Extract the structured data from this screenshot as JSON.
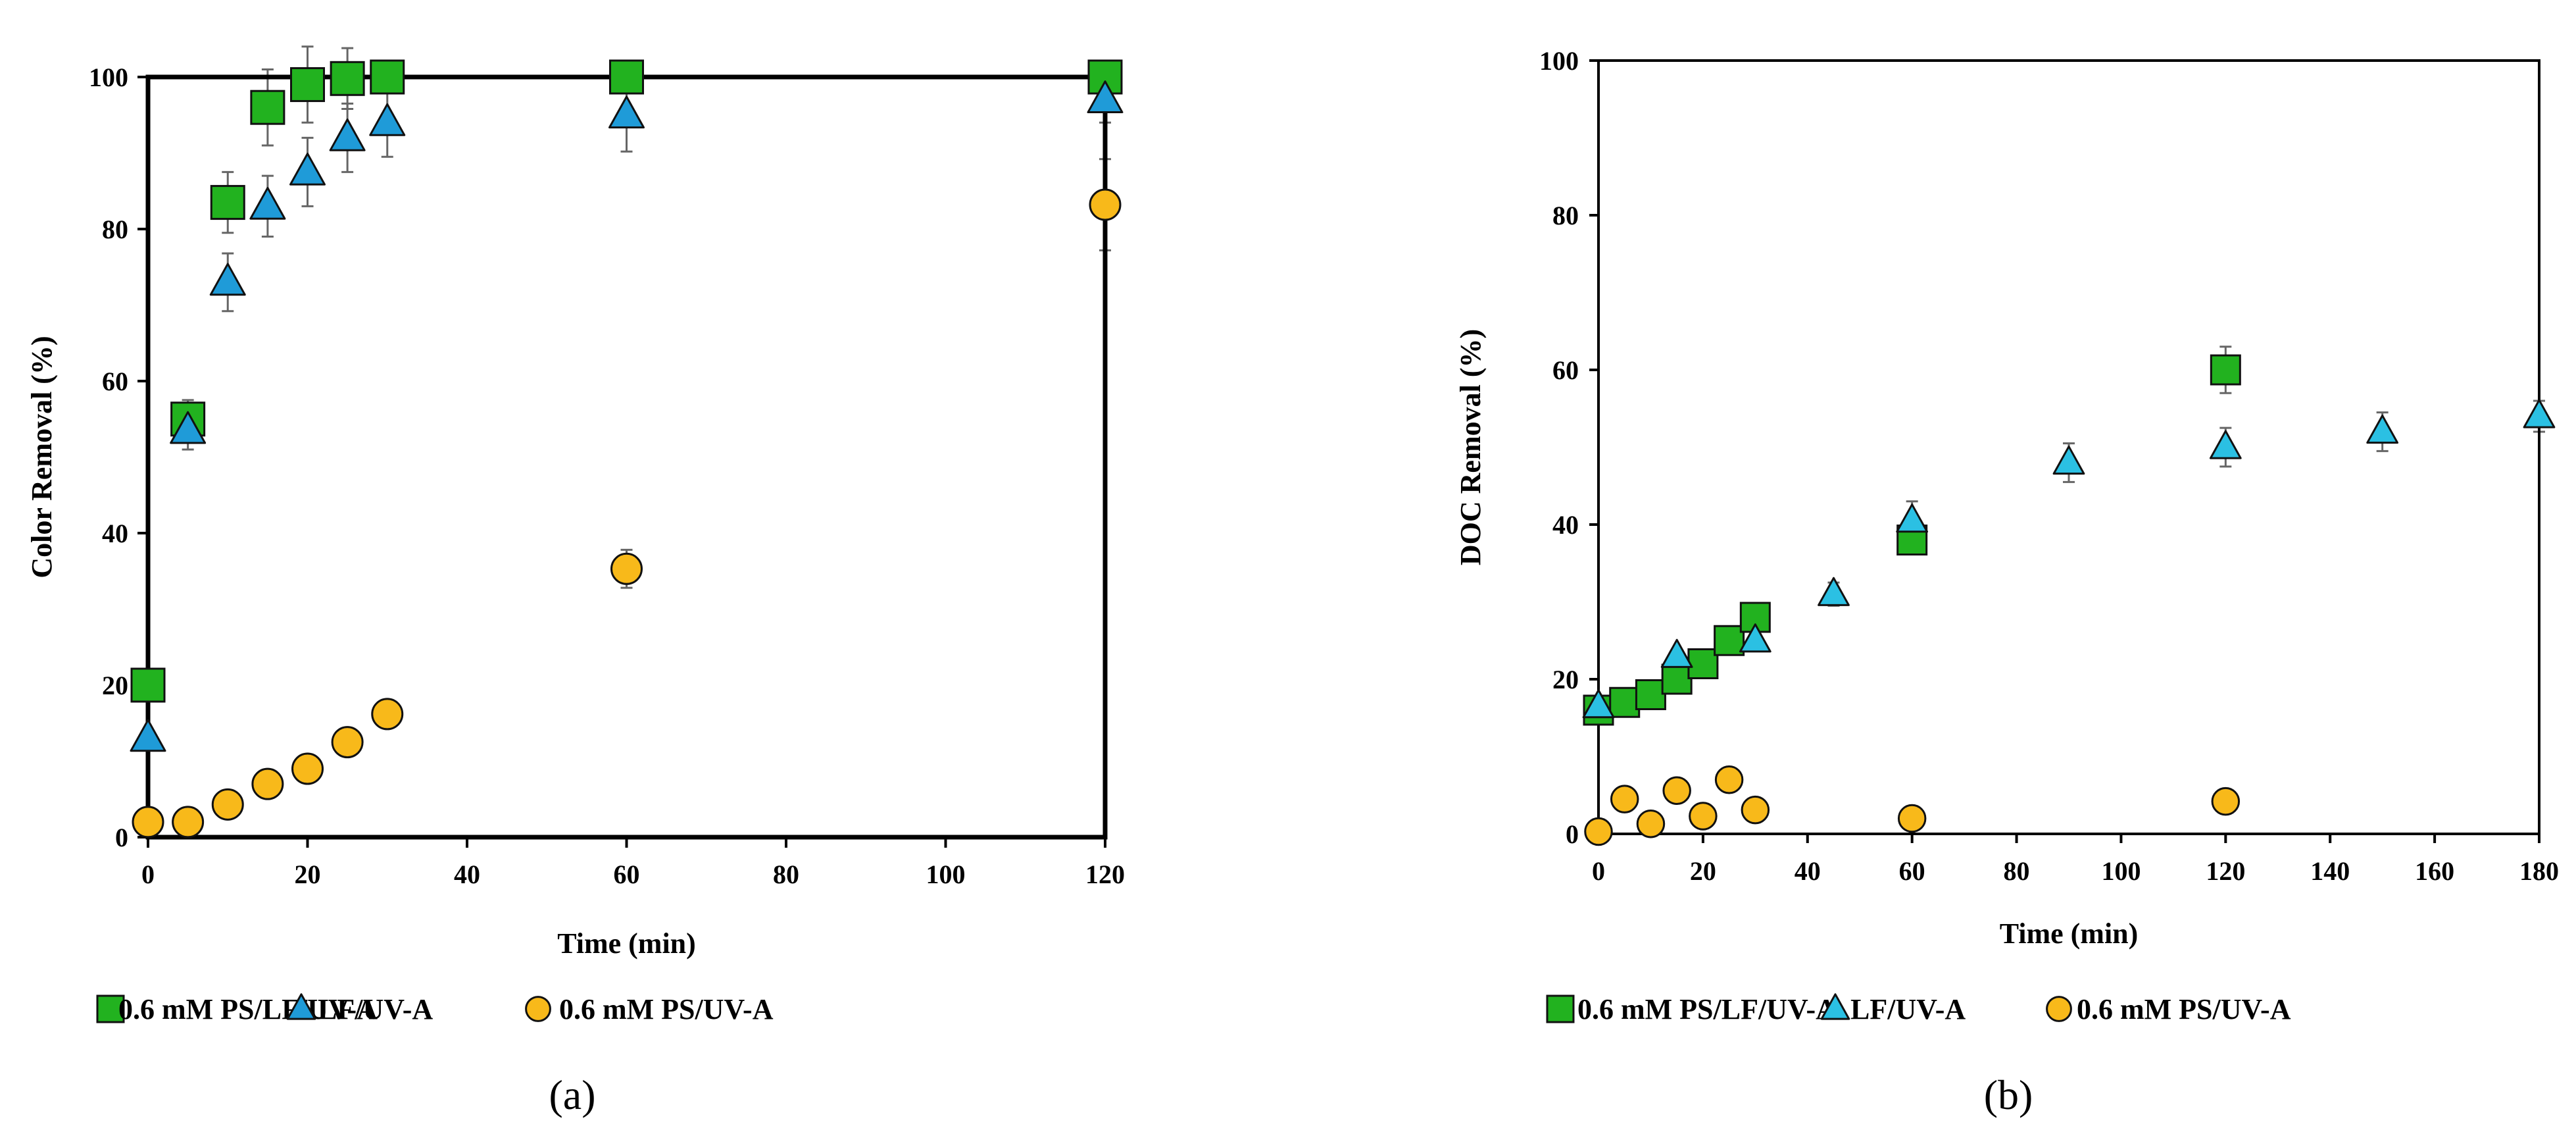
{
  "colors": {
    "square": "#22b21f",
    "triangle_a": "#1f9bd8",
    "triangle_b": "#2bc0e3",
    "circle": "#f8b91a",
    "errorbar": "#666666"
  },
  "chart_data": [
    {
      "type": "scatter",
      "panel_label": "(a)",
      "title": "",
      "xlabel": "Time (min)",
      "ylabel": "Color Removal (%)",
      "xlim": [
        0,
        120
      ],
      "ylim": [
        0,
        100
      ],
      "xticks": [
        0,
        20,
        40,
        60,
        80,
        100,
        120
      ],
      "yticks": [
        0,
        20,
        40,
        60,
        80,
        100
      ],
      "xtick_labels": [
        "0",
        "20",
        "40",
        "60",
        "80",
        "100",
        "120"
      ],
      "ytick_labels": [
        "0",
        "20",
        "40",
        "60",
        "80",
        "100"
      ],
      "legend_position": "bottom",
      "series": [
        {
          "name": "0.6 mM PS/LF/UV-A",
          "marker": "square",
          "x": [
            0,
            5,
            10,
            15,
            20,
            25,
            30,
            60,
            120
          ],
          "y": [
            20,
            55,
            83.5,
            96,
            99,
            99.8,
            100,
            100,
            100
          ],
          "err": [
            0,
            2.5,
            4,
            5,
            5,
            4,
            0,
            0,
            0
          ]
        },
        {
          "name": "LF/UV-A",
          "marker": "triangle",
          "x": [
            0,
            5,
            10,
            15,
            20,
            25,
            30,
            60,
            120
          ],
          "y": [
            13,
            53.5,
            73,
            83,
            87.5,
            92,
            94,
            95,
            97
          ],
          "err": [
            0,
            2.5,
            3.8,
            4,
            4.5,
            4.5,
            4.5,
            4.8,
            3
          ]
        },
        {
          "name": "0.6 mM PS/UV-A",
          "marker": "circle",
          "x": [
            0,
            5,
            10,
            15,
            20,
            25,
            30,
            60,
            120
          ],
          "y": [
            2,
            2,
            4.3,
            7,
            9,
            12.5,
            16.2,
            35.3,
            83.2
          ],
          "err": [
            0,
            0,
            0,
            0,
            0,
            0,
            0,
            2.5,
            6
          ]
        }
      ]
    },
    {
      "type": "scatter",
      "panel_label": "(b)",
      "title": "",
      "xlabel": "Time (min)",
      "ylabel": "DOC Removal (%)",
      "xlim": [
        0,
        180
      ],
      "ylim": [
        0,
        100
      ],
      "xticks": [
        0,
        20,
        40,
        60,
        80,
        100,
        120,
        140,
        160,
        180
      ],
      "yticks": [
        0,
        20,
        40,
        60,
        80,
        100
      ],
      "xtick_labels": [
        "0",
        "20",
        "40",
        "60",
        "80",
        "100",
        "120",
        "140",
        "160",
        "180"
      ],
      "ytick_labels": [
        "0",
        "20",
        "40",
        "60",
        "80",
        "100"
      ],
      "legend_position": "bottom",
      "series": [
        {
          "name": "0.6 mM PS/LF/UV-A",
          "marker": "square",
          "x": [
            0,
            5,
            10,
            15,
            20,
            25,
            30,
            60,
            120
          ],
          "y": [
            16,
            17,
            18,
            20,
            22,
            25,
            28,
            38,
            60
          ],
          "err": [
            0,
            0,
            0,
            0,
            0,
            0,
            0,
            1.5,
            3
          ]
        },
        {
          "name": "LF/UV-A",
          "marker": "triangle",
          "x": [
            0,
            15,
            30,
            45,
            60,
            90,
            120,
            150,
            180
          ],
          "y": [
            16.5,
            23,
            25,
            31,
            40.5,
            48,
            50,
            52,
            54
          ],
          "err": [
            0,
            0,
            0,
            1.5,
            2.5,
            2.5,
            2.5,
            2.5,
            2
          ]
        },
        {
          "name": "0.6 mM PS/UV-A",
          "marker": "circle",
          "x": [
            0,
            5,
            10,
            15,
            20,
            25,
            30,
            60,
            120
          ],
          "y": [
            0.3,
            4.5,
            1.3,
            5.6,
            2.3,
            7,
            3.1,
            2,
            4.2
          ],
          "err": [
            0,
            0,
            0,
            0,
            0,
            0,
            0,
            0,
            0
          ]
        }
      ]
    }
  ]
}
